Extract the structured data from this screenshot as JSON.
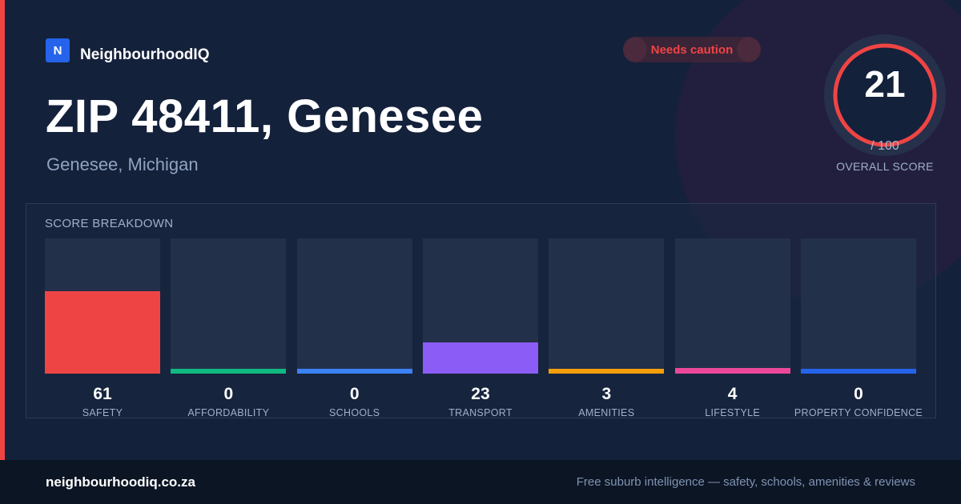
{
  "brand": {
    "logo_letter": "N",
    "name": "NeighbourhoodIQ"
  },
  "badge": {
    "text": "Needs caution",
    "color": "#ef4444"
  },
  "location": {
    "title": "ZIP 48411, Genesee",
    "subtitle": "Genesee, Michigan"
  },
  "overall": {
    "score": "21",
    "max_label": "/ 100",
    "label": "OVERALL SCORE",
    "value": 21,
    "max": 100,
    "ring_color": "#ef4444"
  },
  "breakdown": {
    "title": "SCORE BREAKDOWN",
    "items": [
      {
        "label": "SAFETY",
        "value": 61,
        "display": "61",
        "color": "#ef4444"
      },
      {
        "label": "AFFORDABILITY",
        "value": 0,
        "display": "0",
        "color": "#10b981"
      },
      {
        "label": "SCHOOLS",
        "value": 0,
        "display": "0",
        "color": "#3b82f6"
      },
      {
        "label": "TRANSPORT",
        "value": 23,
        "display": "23",
        "color": "#8b5cf6"
      },
      {
        "label": "AMENITIES",
        "value": 3,
        "display": "3",
        "color": "#f59e0b"
      },
      {
        "label": "LIFESTYLE",
        "value": 4,
        "display": "4",
        "color": "#ec4899"
      },
      {
        "label": "PROPERTY CONFIDENCE",
        "value": 0,
        "display": "0",
        "color": "#2563eb"
      }
    ]
  },
  "footer": {
    "url": "neighbourhoodiq.co.za",
    "tagline": "Free suburb intelligence — safety, schools, amenities & reviews"
  }
}
